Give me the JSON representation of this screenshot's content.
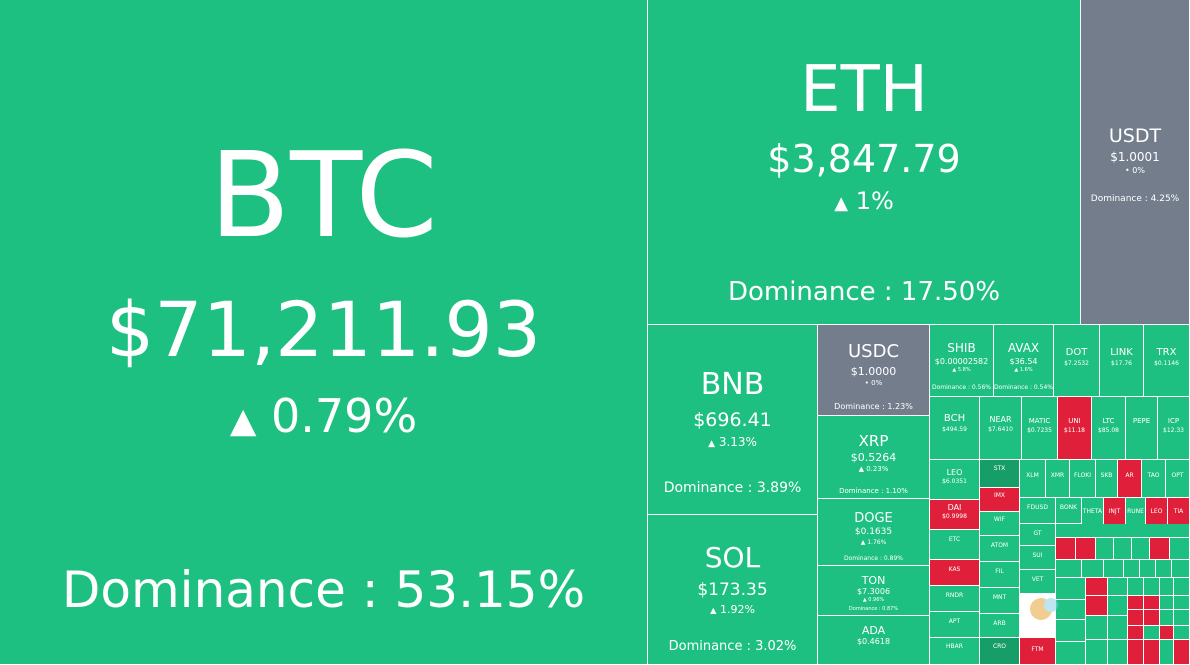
{
  "main": [
    {
      "symbol": "BTC",
      "price": "$71,211.93",
      "change": "0.79%",
      "dominance": "Dominance : 53.15%"
    },
    {
      "symbol": "ETH",
      "price": "$3,847.79",
      "change": "1%",
      "dominance": "Dominance : 17.50%"
    },
    {
      "symbol": "USDT",
      "price": "$1.0001",
      "change": "0%",
      "dominance": "Dominance : 4.25%"
    },
    {
      "symbol": "BNB",
      "price": "$696.41",
      "change": "3.13%",
      "dominance": "Dominance : 3.89%"
    },
    {
      "symbol": "SOL",
      "price": "$173.35",
      "change": "1.92%",
      "dominance": "Dominance : 3.02%"
    },
    {
      "symbol": "USDC",
      "price": "$1.0000",
      "change": "0%",
      "dominance": "Dominance : 1.23%"
    },
    {
      "symbol": "XRP",
      "price": "$0.5264",
      "change": "0.23%",
      "dominance": "Dominance : 1.10%"
    },
    {
      "symbol": "DOGE",
      "price": "$0.1635",
      "change": "1.76%",
      "dominance": "Dominance : 0.89%"
    },
    {
      "symbol": "TON",
      "price": "$7.3006",
      "change": "0.96%",
      "dominance": "Dominance : 0.87%"
    },
    {
      "symbol": "ADA",
      "price": "$0.4618",
      "change": "",
      "dominance": ""
    }
  ],
  "mid": [
    {
      "symbol": "SHIB",
      "price": "$0.00002582",
      "change": "5.8%",
      "dominance": "Dominance : 0.56%"
    },
    {
      "symbol": "AVAX",
      "price": "$36.54",
      "change": "1.6%",
      "dominance": "Dominance : 0.54%"
    },
    {
      "symbol": "DOT",
      "price": "$7.2532",
      "change": "",
      "dominance": ""
    },
    {
      "symbol": "LINK",
      "price": "$17.76",
      "change": "",
      "dominance": ""
    },
    {
      "symbol": "TRX",
      "price": "$0.1146",
      "change": "",
      "dominance": ""
    },
    {
      "symbol": "BCH",
      "price": "$494.59",
      "change": "",
      "dominance": ""
    },
    {
      "symbol": "NEAR",
      "price": "$7.6410",
      "change": "",
      "dominance": ""
    },
    {
      "symbol": "MATIC",
      "price": "$0.7235",
      "change": "",
      "dominance": ""
    },
    {
      "symbol": "UNI",
      "price": "$11.18",
      "change": "",
      "dominance": ""
    },
    {
      "symbol": "LTC",
      "price": "$85.08",
      "change": "",
      "dominance": ""
    },
    {
      "symbol": "PEPE",
      "price": "",
      "change": "",
      "dominance": ""
    },
    {
      "symbol": "ICP",
      "price": "$12.33",
      "change": "",
      "dominance": ""
    }
  ],
  "small": [
    {
      "symbol": "LEO",
      "price": "$6.0351"
    },
    {
      "symbol": "STX"
    },
    {
      "symbol": "XLM"
    },
    {
      "symbol": "XMR"
    },
    {
      "symbol": "FLOKI"
    },
    {
      "symbol": "SKB"
    },
    {
      "symbol": "AR"
    },
    {
      "symbol": "TAO"
    },
    {
      "symbol": "OPT"
    },
    {
      "symbol": "DAI",
      "price": "$0.9998"
    },
    {
      "symbol": "IMX"
    },
    {
      "symbol": "FDUSD"
    },
    {
      "symbol": "BONK"
    },
    {
      "symbol": "INJT"
    },
    {
      "symbol": "RUNE"
    },
    {
      "symbol": "LEO"
    },
    {
      "symbol": "TIA"
    },
    {
      "symbol": "WIF"
    },
    {
      "symbol": "THETA"
    },
    {
      "symbol": "ETC"
    },
    {
      "symbol": "ATOM"
    },
    {
      "symbol": "GT"
    },
    {
      "symbol": "KAS"
    },
    {
      "symbol": "FIL"
    },
    {
      "symbol": "SUI"
    },
    {
      "symbol": "RNDR"
    },
    {
      "symbol": "MNT"
    },
    {
      "symbol": "VET"
    },
    {
      "symbol": "APT"
    },
    {
      "symbol": "ARB"
    },
    {
      "symbol": "HBAR"
    },
    {
      "symbol": "CRO"
    },
    {
      "symbol": "FTM"
    }
  ],
  "colors": {
    "up": "#1dc080",
    "down": "#e0203a",
    "neutral": "#737d8c"
  }
}
